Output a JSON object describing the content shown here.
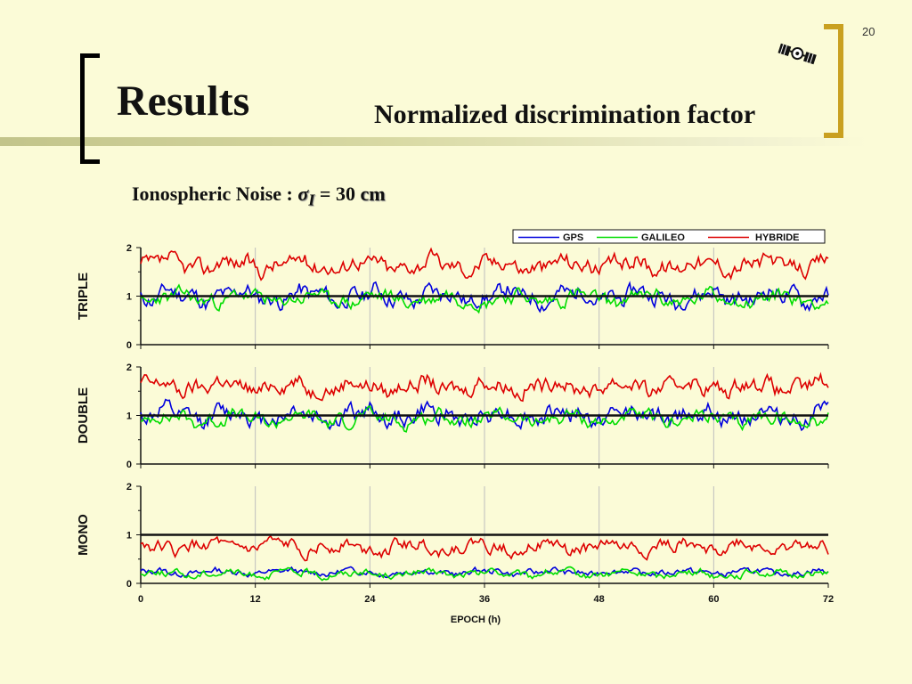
{
  "slide": {
    "page_number": "20",
    "title": "Results",
    "subtitle": "Normalized discrimination factor",
    "noise_label": "Ionospheric Noise : ",
    "sigma_symbol": "σ",
    "sigma_subscript": "I",
    "noise_equals": " = ",
    "noise_value": "30",
    "noise_unit": " cm",
    "icon": "satellite-icon"
  },
  "chart_data": {
    "type": "line",
    "xlabel": "EPOCH (h)",
    "xlim": [
      0,
      72
    ],
    "xticks": [
      "0",
      "12",
      "24",
      "36",
      "48",
      "60",
      "72"
    ],
    "xtick_values": [
      0,
      12,
      24,
      36,
      48,
      60,
      72
    ],
    "grid": "vertical lines at 12 h intervals",
    "legend_position": "top-right",
    "legend": [
      "GPS",
      "GALILEO",
      "HYBRIDE"
    ],
    "colors": {
      "GPS": "#0000dd",
      "GALILEO": "#00dd00",
      "HYBRIDE": "#dd0000",
      "reference": "#111111"
    },
    "reference_line": 1,
    "panels": [
      {
        "ylabel": "TRIPLE",
        "ylim": [
          0,
          2
        ],
        "yticks": [
          "0",
          "1",
          "2"
        ],
        "series": [
          {
            "name": "GPS",
            "mean": 1.0,
            "amp": 0.2,
            "seed": 11
          },
          {
            "name": "GALILEO",
            "mean": 0.95,
            "amp": 0.16,
            "seed": 23
          },
          {
            "name": "HYBRIDE",
            "mean": 1.65,
            "amp": 0.18,
            "seed": 37
          }
        ]
      },
      {
        "ylabel": "DOUBLE",
        "ylim": [
          0,
          2
        ],
        "yticks": [
          "0",
          "1",
          "2"
        ],
        "series": [
          {
            "name": "GPS",
            "mean": 1.0,
            "amp": 0.2,
            "seed": 12
          },
          {
            "name": "GALILEO",
            "mean": 0.93,
            "amp": 0.15,
            "seed": 24
          },
          {
            "name": "HYBRIDE",
            "mean": 1.6,
            "amp": 0.18,
            "seed": 38
          }
        ]
      },
      {
        "ylabel": "MONO",
        "ylim": [
          0,
          2
        ],
        "yticks": [
          "0",
          "1",
          "2"
        ],
        "series": [
          {
            "name": "GPS",
            "mean": 0.23,
            "amp": 0.07,
            "seed": 13
          },
          {
            "name": "GALILEO",
            "mean": 0.2,
            "amp": 0.08,
            "seed": 25
          },
          {
            "name": "HYBRIDE",
            "mean": 0.75,
            "amp": 0.14,
            "seed": 39
          }
        ]
      }
    ]
  }
}
